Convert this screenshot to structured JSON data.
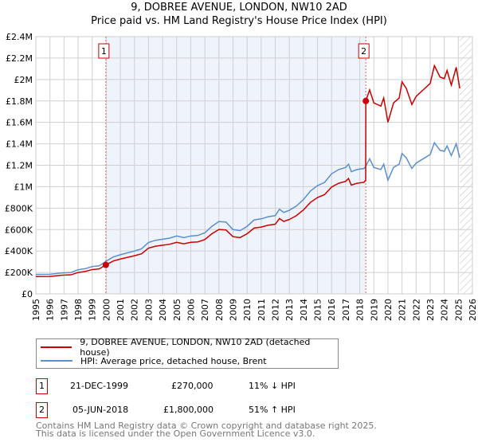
{
  "title": "9, DOBREE AVENUE, LONDON, NW10 2AD",
  "subtitle": "Price paid vs. HM Land Registry's House Price Index (HPI)",
  "chart_data": {
    "type": "line",
    "xlim": [
      1995,
      2026
    ],
    "ylim": [
      0,
      2400000
    ],
    "x_ticks": [
      "1995",
      "1996",
      "1997",
      "1998",
      "1999",
      "2000",
      "2001",
      "2002",
      "2003",
      "2004",
      "2005",
      "2006",
      "2007",
      "2008",
      "2009",
      "2010",
      "2011",
      "2012",
      "2013",
      "2014",
      "2015",
      "2016",
      "2017",
      "2018",
      "2019",
      "2020",
      "2021",
      "2022",
      "2023",
      "2024",
      "2025",
      "2026"
    ],
    "y_ticks": [
      {
        "v": 0,
        "l": "£0"
      },
      {
        "v": 200000,
        "l": "£200K"
      },
      {
        "v": 400000,
        "l": "£400K"
      },
      {
        "v": 600000,
        "l": "£600K"
      },
      {
        "v": 800000,
        "l": "£800K"
      },
      {
        "v": 1000000,
        "l": "£1M"
      },
      {
        "v": 1200000,
        "l": "£1.2M"
      },
      {
        "v": 1400000,
        "l": "£1.4M"
      },
      {
        "v": 1600000,
        "l": "£1.6M"
      },
      {
        "v": 1800000,
        "l": "£1.8M"
      },
      {
        "v": 2000000,
        "l": "£2M"
      },
      {
        "v": 2200000,
        "l": "£2.2M"
      },
      {
        "v": 2400000,
        "l": "£2.4M"
      }
    ],
    "grid": true,
    "shaded_range": [
      1999.97,
      2018.43
    ],
    "hatched_from": 2025.1,
    "series": [
      {
        "name": "9, DOBREE AVENUE, LONDON, NW10 2AD (detached house)",
        "color": "#cc0000",
        "x": [
          1995,
          1996,
          1996.8,
          1997.5,
          1998,
          1998.5,
          1999,
          1999.5,
          1999.97,
          2000.5,
          2001,
          2002,
          2002.5,
          2003,
          2003.5,
          2004,
          2004.5,
          2005,
          2005.5,
          2006,
          2006.5,
          2007,
          2007.5,
          2008,
          2008.5,
          2009,
          2009.5,
          2010,
          2010.5,
          2011,
          2011.5,
          2012,
          2012.3,
          2012.6,
          2013,
          2013.5,
          2014,
          2014.5,
          2015,
          2015.5,
          2016,
          2016.5,
          2017,
          2017.2,
          2017.4,
          2017.8,
          2018.3,
          2018.42,
          2018.43,
          2018.7,
          2019,
          2019.5,
          2019.7,
          2020,
          2020.4,
          2020.8,
          2021,
          2021.3,
          2021.7,
          2022,
          2022.5,
          2023,
          2023.3,
          2023.7,
          2024,
          2024.2,
          2024.5,
          2024.85,
          2025.1
        ],
        "values": [
          162,
          163,
          174,
          178,
          200,
          209,
          227,
          233,
          270,
          307,
          325,
          356,
          374,
          427,
          445,
          454,
          463,
          481,
          467,
          481,
          485,
          507,
          561,
          601,
          596,
          534,
          525,
          561,
          614,
          623,
          641,
          650,
          703,
          676,
          694,
          730,
          783,
          854,
          899,
          926,
          997,
          1032,
          1050,
          1077,
          1015,
          1032,
          1041,
          1060,
          1800,
          1903,
          1782,
          1752,
          1827,
          1601,
          1782,
          1827,
          1978,
          1918,
          1767,
          1842,
          1903,
          1963,
          2129,
          2023,
          2008,
          2084,
          1948,
          2114,
          1918
        ],
        "unit": "£K"
      },
      {
        "name": "HPI: Average price, detached house, Brent",
        "color": "#5b8fd0",
        "x": [
          1995,
          1996,
          1996.8,
          1997.5,
          1998,
          1998.5,
          1999,
          1999.5,
          1999.97,
          2000.5,
          2001,
          2002,
          2002.5,
          2003,
          2003.5,
          2004,
          2004.5,
          2005,
          2005.5,
          2006,
          2006.5,
          2007,
          2007.5,
          2008,
          2008.5,
          2009,
          2009.5,
          2010,
          2010.5,
          2011,
          2011.5,
          2012,
          2012.3,
          2012.6,
          2013,
          2013.5,
          2014,
          2014.5,
          2015,
          2015.5,
          2016,
          2016.5,
          2017,
          2017.2,
          2017.4,
          2017.8,
          2018.3,
          2018.43,
          2018.7,
          2019,
          2019.5,
          2019.7,
          2020,
          2020.4,
          2020.8,
          2021,
          2021.3,
          2021.7,
          2022,
          2022.5,
          2023,
          2023.3,
          2023.7,
          2024,
          2024.2,
          2024.5,
          2024.85,
          2025.1
        ],
        "values": [
          182,
          183,
          195,
          200,
          225,
          235,
          255,
          262,
          303,
          345,
          365,
          400,
          420,
          480,
          500,
          510,
          520,
          540,
          525,
          540,
          545,
          570,
          630,
          675,
          670,
          600,
          590,
          630,
          690,
          700,
          720,
          730,
          790,
          760,
          780,
          820,
          880,
          960,
          1010,
          1040,
          1120,
          1160,
          1180,
          1210,
          1140,
          1160,
          1170,
          1192,
          1260,
          1180,
          1160,
          1210,
          1060,
          1180,
          1210,
          1310,
          1270,
          1170,
          1220,
          1260,
          1300,
          1410,
          1340,
          1330,
          1380,
          1290,
          1400,
          1270
        ],
        "unit": "£K"
      }
    ],
    "annotations": [
      {
        "label": "1",
        "x": 1999.97,
        "y": 270000
      },
      {
        "label": "2",
        "x": 2018.43,
        "y": 1800000
      }
    ]
  },
  "transactions": [
    {
      "num": "1",
      "date": "21-DEC-1999",
      "price": "£270,000",
      "hpi": "11% ↓ HPI"
    },
    {
      "num": "2",
      "date": "05-JUN-2018",
      "price": "£1,800,000",
      "hpi": "51% ↑ HPI"
    }
  ],
  "footer": [
    "Contains HM Land Registry data © Crown copyright and database right 2025.",
    "This data is licensed under the Open Government Licence v3.0."
  ]
}
